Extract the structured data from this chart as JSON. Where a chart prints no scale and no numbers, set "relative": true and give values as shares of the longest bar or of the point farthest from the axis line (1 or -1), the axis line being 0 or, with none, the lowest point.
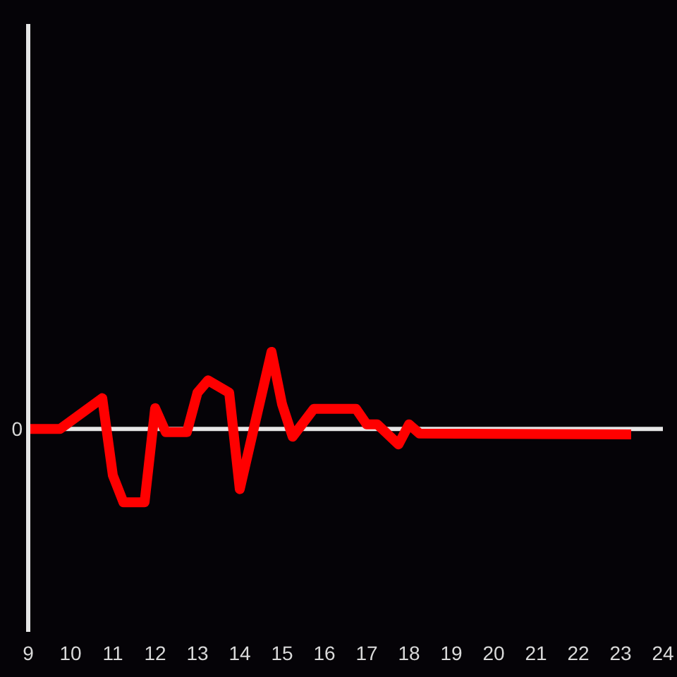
{
  "chart_data": {
    "type": "line",
    "relative": true,
    "x": [
      9,
      9.75,
      10.75,
      11,
      11.25,
      11.75,
      12,
      12.25,
      12.75,
      13,
      13.25,
      13.75,
      14,
      14.75,
      15,
      15.25,
      15.75,
      16.75,
      17,
      17.25,
      17.75,
      18,
      18.25,
      23.25
    ],
    "series": [
      {
        "color": "#ff0000",
        "values": [
          0,
          0,
          0.4,
          -0.6,
          -0.95,
          -0.95,
          0.27,
          -0.04,
          -0.04,
          0.47,
          0.63,
          0.47,
          -0.78,
          1,
          0.32,
          -0.1,
          0.26,
          0.26,
          0.06,
          0.06,
          -0.2,
          0.06,
          -0.06,
          -0.07
        ]
      }
    ],
    "xlim": [
      9,
      24
    ],
    "xticks": [
      9,
      10,
      11,
      12,
      13,
      14,
      15,
      16,
      17,
      18,
      19,
      20,
      21,
      22,
      23,
      24
    ],
    "ref_lines": [
      {
        "axis": "y",
        "value": 0,
        "label": "0",
        "color": "#e6e6e6"
      }
    ]
  }
}
